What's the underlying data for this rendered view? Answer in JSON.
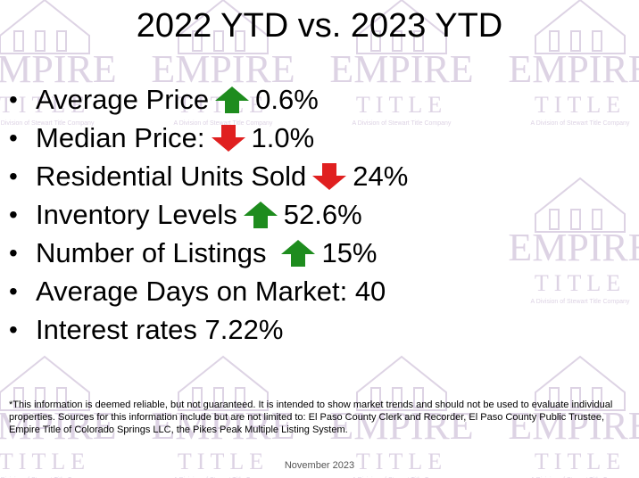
{
  "slide": {
    "title": "2022 YTD vs. 2023 YTD",
    "bullets": [
      {
        "bullet": "•",
        "label": "Average Price",
        "arrow": "up-arrow-icon",
        "value": "0.6%"
      },
      {
        "bullet": "•",
        "label": "Median Price:",
        "arrow": "down-arrow-icon",
        "value": "1.0%"
      },
      {
        "bullet": "•",
        "label": "Residential Units Sold",
        "arrow": "down-arrow-icon",
        "value": "24%"
      },
      {
        "bullet": "•",
        "label": "Inventory Levels",
        "arrow": "up-arrow-icon",
        "value": "52.6%"
      },
      {
        "bullet": "•",
        "label": "Number of Listings",
        "arrow": "up-arrow-icon",
        "value": "15%"
      },
      {
        "bullet": "•",
        "label": "Average Days on Market: 40",
        "arrow": null,
        "value": ""
      },
      {
        "bullet": "•",
        "label": "Interest rates 7.22%",
        "arrow": null,
        "value": ""
      }
    ],
    "footnote": "*This information is deemed reliable, but not guaranteed.  It is intended to show market trends and should not be used to evaluate individual properties.  Sources for this information include but are not limited to: El Paso County Clerk and Recorder, El Paso County Public Trustee, Empire Title of Colorado Springs LLC, the Pikes Peak Multiple Listing System.",
    "date": "November 2023"
  },
  "watermark": {
    "brand": "EMPIRE",
    "sub": "TITLE",
    "tagline": "A Division of Stewart Title Company",
    "color": "#ddd3e4"
  },
  "colors": {
    "up": "#1e8c1e",
    "down": "#e02020"
  }
}
